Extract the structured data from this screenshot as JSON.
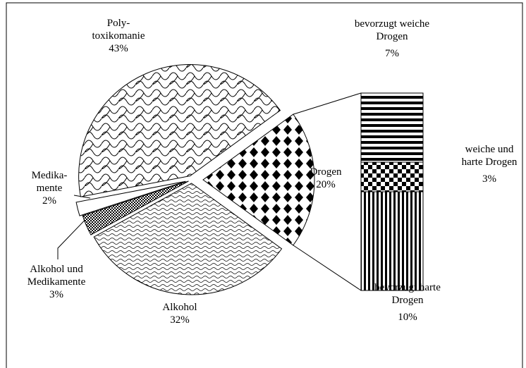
{
  "chart_data": {
    "type": "pie-of-bar",
    "categories": [
      "Drogen",
      "Alkohol",
      "Alkohol und\nMedikamente",
      "Medika-\nmente",
      "Poly-\ntoxikomanie"
    ],
    "values": [
      20,
      32,
      3,
      2,
      43
    ],
    "value_labels": [
      "20%",
      "32%",
      "3%",
      "2%",
      "43%"
    ],
    "bar": {
      "categories": [
        "bevorzugt weiche\nDrogen",
        "weiche und\nharte Drogen",
        "bevorzugt harte\nDrogen"
      ],
      "values": [
        7,
        3,
        10
      ],
      "value_labels": [
        "7%",
        "3%",
        "10%"
      ]
    }
  }
}
